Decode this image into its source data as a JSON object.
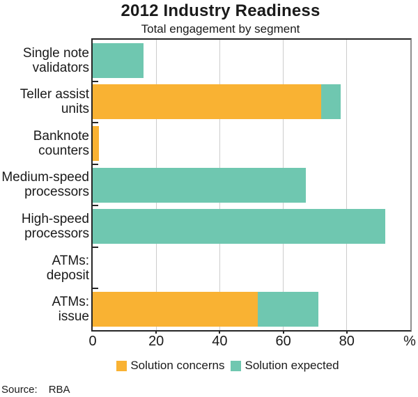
{
  "title": "2012 Industry Readiness",
  "subtitle": "Total engagement by segment",
  "source": {
    "label": "Source:",
    "value": "RBA"
  },
  "legend": [
    {
      "label": "Solution concerns",
      "color_key": "concerns"
    },
    {
      "label": "Solution expected",
      "color_key": "expected"
    }
  ],
  "colors": {
    "concerns": "#F9B233",
    "expected": "#6FC7B0",
    "grid": "#CCCCCC",
    "axis": "#262626",
    "right_border": "#8F8F8F"
  },
  "chart_data": {
    "type": "bar",
    "orientation": "horizontal",
    "stacked": true,
    "title": "2012 Industry Readiness",
    "subtitle": "Total engagement by segment",
    "categories": [
      "Single note validators",
      "Teller assist units",
      "Banknote counters",
      "Medium-speed processors",
      "High-speed processors",
      "ATMs: deposit",
      "ATMs: issue"
    ],
    "category_lines": [
      [
        "Single note",
        "validators"
      ],
      [
        "Teller assist",
        "units"
      ],
      [
        "Banknote",
        "counters"
      ],
      [
        "Medium-speed",
        "processors"
      ],
      [
        "High-speed",
        "processors"
      ],
      [
        "ATMs:",
        "deposit"
      ],
      [
        "ATMs:",
        "issue"
      ]
    ],
    "series": [
      {
        "name": "Solution concerns",
        "values": [
          0,
          72,
          2,
          0,
          0,
          0,
          52
        ]
      },
      {
        "name": "Solution expected",
        "values": [
          16,
          6,
          0,
          67,
          92,
          0,
          19
        ]
      }
    ],
    "xlim": [
      0,
      100
    ],
    "xticks": [
      0,
      20,
      40,
      60,
      80
    ],
    "unit": "%",
    "grid": true,
    "legend_position": "bottom"
  }
}
